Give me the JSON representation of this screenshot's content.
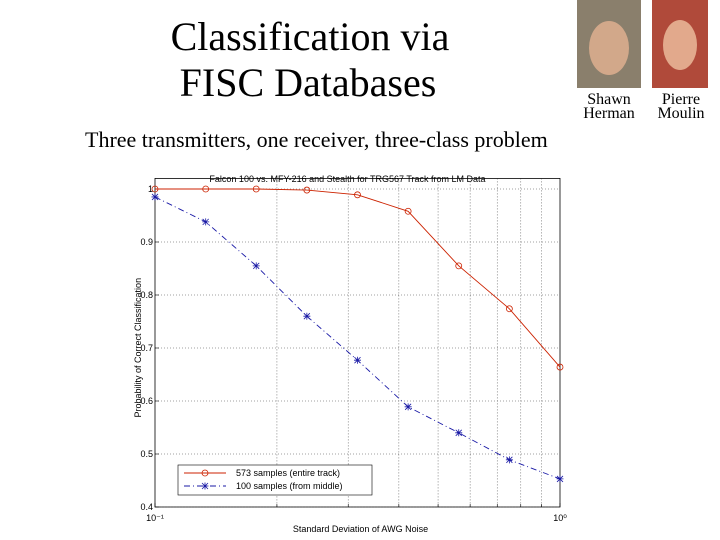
{
  "slide": {
    "title": [
      "Classification via",
      "FISC Databases"
    ],
    "subtitle": "Three transmitters, one receiver, three-class problem",
    "people": [
      {
        "first": "Shawn",
        "last": "Herman"
      },
      {
        "first": "Pierre",
        "last": "Moulin"
      }
    ]
  },
  "chart_data": {
    "type": "line",
    "title": "Falcon 100 vs. MFY-216 and Stealth for TRG567 Track from LM Data",
    "xlabel": "Standard Deviation of AWG Noise",
    "ylabel": "Probability of Correct Classification",
    "x": [
      0.1,
      0.1334,
      0.1778,
      0.2371,
      0.3162,
      0.4217,
      0.5623,
      0.7499,
      1.0
    ],
    "series": [
      {
        "name": "573 samples (entire track)",
        "color": "#cc2200",
        "marker": "circle",
        "dash": "solid",
        "values": [
          1.0,
          1.0,
          1.0,
          0.998,
          0.989,
          0.958,
          0.855,
          0.774,
          0.664
        ]
      },
      {
        "name": "100 samples (from middle)",
        "color": "#1a1aa6",
        "marker": "star",
        "dash": "dashdot",
        "values": [
          0.985,
          0.938,
          0.855,
          0.76,
          0.677,
          0.589,
          0.54,
          0.489,
          0.453
        ]
      }
    ],
    "xscale": "log",
    "xlim": [
      0.1,
      1.0
    ],
    "xticks": [
      {
        "value": 0.1,
        "label": "10⁻¹"
      },
      {
        "value": 1.0,
        "label": "10⁰"
      }
    ],
    "xminorticks": [
      0.2,
      0.3,
      0.4,
      0.5,
      0.6,
      0.7,
      0.8,
      0.9
    ],
    "ylim": [
      0.4,
      1.02
    ],
    "yticks": [
      0.4,
      0.5,
      0.6,
      0.7,
      0.8,
      0.9,
      1
    ],
    "grid": true,
    "legend": "lower left"
  }
}
